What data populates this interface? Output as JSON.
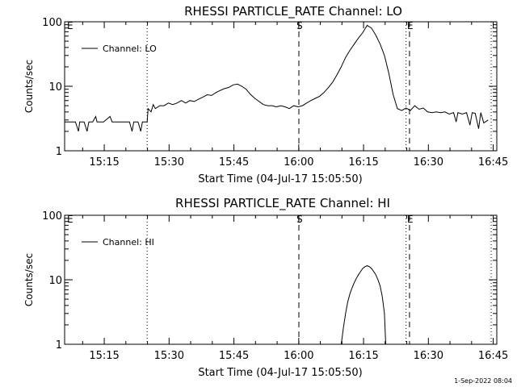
{
  "colors": {
    "background": "#ffffff",
    "foreground": "#000000"
  },
  "timestamp": "1-Sep-2022 08:04",
  "chart_data": [
    {
      "type": "line",
      "title": "RHESSI PARTICLE_RATE Channel: LO",
      "xlabel": "Start Time (04-Jul-17 15:05:50)",
      "ylabel": "Counts/sec",
      "yscale": "log",
      "xlim": [
        0,
        100
      ],
      "ylim": [
        1,
        100
      ],
      "x_unit": "minutes after 15:05:50",
      "xticks": [
        "15:15",
        "15:30",
        "15:45",
        "16:00",
        "16:15",
        "16:30",
        "16:45"
      ],
      "xtick_values": [
        9.17,
        24.17,
        39.17,
        54.17,
        69.17,
        84.17,
        99.17
      ],
      "yticks": [
        "1",
        "10",
        "100"
      ],
      "ytick_values": [
        1,
        10,
        100
      ],
      "legend": {
        "label": "Channel: LO",
        "position": "top-left"
      },
      "markers": [
        {
          "label": "E",
          "x": 0.0,
          "style": "dotted"
        },
        {
          "label": "",
          "x": 19.1,
          "style": "dotted"
        },
        {
          "label": "S",
          "x": 54.2,
          "style": "dashed"
        },
        {
          "label": "",
          "x": 79.0,
          "style": "dotted"
        },
        {
          "label": "E",
          "x": 79.8,
          "style": "dashed"
        },
        {
          "label": "",
          "x": 98.7,
          "style": "dotted"
        }
      ],
      "series": [
        {
          "values": [
            [
              0,
              2.8
            ],
            [
              1,
              2.8
            ],
            [
              2.5,
              2.8
            ],
            [
              3.2,
              2.0
            ],
            [
              3.5,
              2.8
            ],
            [
              4.5,
              2.8
            ],
            [
              5.2,
              2.0
            ],
            [
              5.6,
              2.8
            ],
            [
              6.5,
              2.8
            ],
            [
              7.2,
              3.4
            ],
            [
              7.5,
              2.8
            ],
            [
              9,
              2.8
            ],
            [
              10.5,
              3.4
            ],
            [
              11,
              2.8
            ],
            [
              15,
              2.8
            ],
            [
              15.6,
              2.0
            ],
            [
              16,
              2.8
            ],
            [
              17,
              2.8
            ],
            [
              17.6,
              2.0
            ],
            [
              18,
              2.8
            ],
            [
              19.1,
              2.8
            ],
            [
              19.3,
              4.5
            ],
            [
              20,
              4.0
            ],
            [
              20.5,
              5.2
            ],
            [
              21,
              4.5
            ],
            [
              22,
              5.0
            ],
            [
              23,
              5.0
            ],
            [
              24,
              5.5
            ],
            [
              25,
              5.2
            ],
            [
              26,
              5.5
            ],
            [
              27,
              6.0
            ],
            [
              28,
              5.5
            ],
            [
              29,
              6.0
            ],
            [
              30,
              5.8
            ],
            [
              31,
              6.3
            ],
            [
              32,
              6.8
            ],
            [
              33,
              7.4
            ],
            [
              34,
              7.2
            ],
            [
              35,
              8.0
            ],
            [
              36,
              8.6
            ],
            [
              37,
              9.2
            ],
            [
              38,
              9.6
            ],
            [
              39,
              10.5
            ],
            [
              40,
              10.8
            ],
            [
              41,
              10.0
            ],
            [
              42,
              9.0
            ],
            [
              43,
              7.5
            ],
            [
              44,
              6.5
            ],
            [
              45,
              5.8
            ],
            [
              46,
              5.2
            ],
            [
              47,
              5.0
            ],
            [
              48,
              5.0
            ],
            [
              49,
              4.8
            ],
            [
              50,
              5.0
            ],
            [
              51,
              4.8
            ],
            [
              52,
              4.5
            ],
            [
              53,
              5.0
            ],
            [
              54,
              4.8
            ],
            [
              55,
              5.0
            ],
            [
              56,
              5.5
            ],
            [
              57,
              6.0
            ],
            [
              58,
              6.5
            ],
            [
              59,
              7.0
            ],
            [
              60,
              8.0
            ],
            [
              61,
              9.5
            ],
            [
              62,
              11.5
            ],
            [
              63,
              15
            ],
            [
              64,
              20
            ],
            [
              65,
              28
            ],
            [
              66,
              36
            ],
            [
              67,
              45
            ],
            [
              68,
              56
            ],
            [
              69,
              68
            ],
            [
              70,
              88
            ],
            [
              71,
              80
            ],
            [
              72,
              62
            ],
            [
              73,
              45
            ],
            [
              74,
              30
            ],
            [
              75,
              16
            ],
            [
              76,
              7.5
            ],
            [
              77,
              4.5
            ],
            [
              78,
              4.2
            ],
            [
              79,
              4.6
            ],
            [
              80,
              4.2
            ],
            [
              81,
              5.0
            ],
            [
              82,
              4.4
            ],
            [
              83,
              4.6
            ],
            [
              84,
              4.0
            ],
            [
              85,
              3.9
            ],
            [
              86,
              4.0
            ],
            [
              87,
              3.9
            ],
            [
              88,
              4.0
            ],
            [
              89,
              3.7
            ],
            [
              90,
              3.9
            ],
            [
              90.6,
              2.8
            ],
            [
              91,
              3.9
            ],
            [
              92,
              3.7
            ],
            [
              93,
              3.9
            ],
            [
              93.8,
              2.5
            ],
            [
              94.3,
              3.9
            ],
            [
              95,
              3.8
            ],
            [
              95.8,
              2.2
            ],
            [
              96.3,
              3.9
            ],
            [
              97,
              2.7
            ],
            [
              98,
              3.0
            ]
          ]
        }
      ]
    },
    {
      "type": "line",
      "title": "RHESSI PARTICLE_RATE Channel: HI",
      "xlabel": "Start Time (04-Jul-17 15:05:50)",
      "ylabel": "Counts/sec",
      "yscale": "log",
      "xlim": [
        0,
        100
      ],
      "ylim": [
        1,
        100
      ],
      "x_unit": "minutes after 15:05:50",
      "xticks": [
        "15:15",
        "15:30",
        "15:45",
        "16:00",
        "16:15",
        "16:30",
        "16:45"
      ],
      "xtick_values": [
        9.17,
        24.17,
        39.17,
        54.17,
        69.17,
        84.17,
        99.17
      ],
      "yticks": [
        "1",
        "10",
        "100"
      ],
      "ytick_values": [
        1,
        10,
        100
      ],
      "legend": {
        "label": "Channel: HI",
        "position": "top-left"
      },
      "markers": [
        {
          "label": "E",
          "x": 0.0,
          "style": "dotted"
        },
        {
          "label": "",
          "x": 19.1,
          "style": "dotted"
        },
        {
          "label": "S",
          "x": 54.2,
          "style": "dashed"
        },
        {
          "label": "",
          "x": 79.0,
          "style": "dotted"
        },
        {
          "label": "E",
          "x": 79.8,
          "style": "dashed"
        },
        {
          "label": "",
          "x": 98.7,
          "style": "dotted"
        }
      ],
      "series": [
        {
          "values": [
            [
              64.0,
              1.0
            ],
            [
              64.5,
              1.8
            ],
            [
              65.0,
              3.0
            ],
            [
              65.5,
              4.5
            ],
            [
              66.0,
              6.0
            ],
            [
              66.5,
              7.5
            ],
            [
              67.0,
              9.0
            ],
            [
              67.5,
              10.5
            ],
            [
              68.0,
              12.0
            ],
            [
              68.5,
              13.5
            ],
            [
              69.0,
              15.0
            ],
            [
              69.5,
              16.0
            ],
            [
              70.0,
              16.5
            ],
            [
              70.5,
              16.0
            ],
            [
              71.0,
              15.0
            ],
            [
              71.5,
              13.5
            ],
            [
              72.0,
              12.0
            ],
            [
              72.5,
              10.0
            ],
            [
              73.0,
              8.0
            ],
            [
              73.5,
              5.5
            ],
            [
              74.0,
              3.0
            ],
            [
              74.3,
              1.0
            ]
          ]
        }
      ]
    }
  ]
}
